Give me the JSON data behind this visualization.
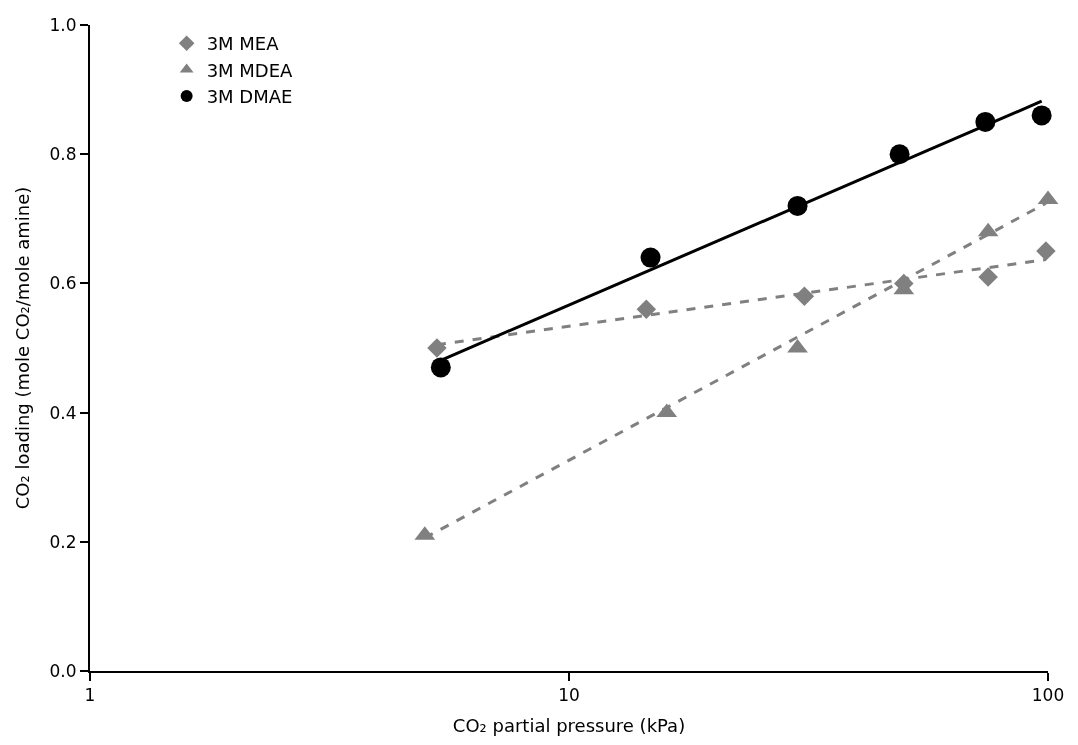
{
  "chart_data": {
    "type": "scatter",
    "xlabel": "CO₂ partial pressure (kPa)",
    "ylabel": "CO₂ loading (mole CO₂/mole amine)",
    "log": "x",
    "legend": "top left",
    "xlim": [
      1,
      100
    ],
    "xticks": [
      1,
      10,
      100
    ],
    "ylim": [
      0,
      1.0
    ],
    "yticks": [
      {
        "value": 0,
        "label": "0.0"
      },
      {
        "value": 0.2,
        "label": "0.2"
      },
      {
        "value": 0.4,
        "label": "0.4"
      },
      {
        "value": 0.6,
        "label": "0.6"
      },
      {
        "value": 0.8,
        "label": "0.8"
      },
      {
        "value": 1.0,
        "label": "1.0"
      }
    ],
    "series": [
      {
        "type": "line",
        "color": "#808080",
        "line_style": "dashed",
        "marker": "none",
        "x": [
          5.3,
          99
        ],
        "values": [
          0.505,
          0.637
        ]
      },
      {
        "type": "line",
        "color": "#808080",
        "line_style": "dashed",
        "marker": "none",
        "x": [
          5.0,
          99
        ],
        "values": [
          0.206,
          0.724
        ]
      },
      {
        "type": "line",
        "color": "#000000",
        "line_style": "solid",
        "marker": "none",
        "x": [
          5.4,
          97
        ],
        "values": [
          0.481,
          0.882
        ]
      },
      {
        "name": "3M MEA",
        "color": "#808080",
        "marker": "diamond",
        "x": [
          5.3,
          14.5,
          31,
          50,
          75,
          99
        ],
        "values": [
          0.5,
          0.56,
          0.58,
          0.6,
          0.61,
          0.65
        ]
      },
      {
        "name": "3M MDEA",
        "color": "#808080",
        "marker": "triangle",
        "x": [
          5.0,
          16,
          30,
          50,
          75,
          100
        ],
        "values": [
          0.21,
          0.4,
          0.5,
          0.59,
          0.68,
          0.73
        ]
      },
      {
        "name": "3M DMAE",
        "color": "#000000",
        "marker": "circle",
        "x": [
          5.4,
          14.8,
          30,
          49,
          74,
          97
        ],
        "values": [
          0.47,
          0.64,
          0.72,
          0.8,
          0.85,
          0.86
        ]
      }
    ]
  }
}
